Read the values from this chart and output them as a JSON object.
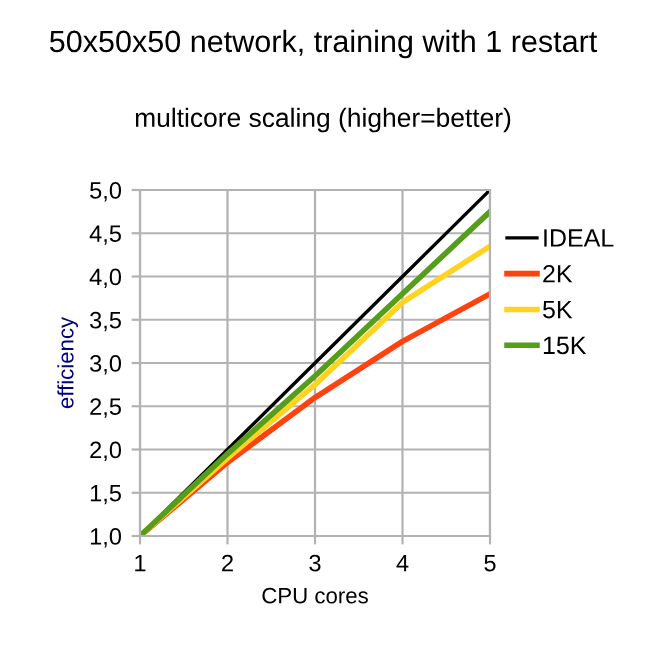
{
  "chart_data": {
    "type": "line",
    "title": "50x50x50 network, training with 1 restart",
    "subtitle": "multicore scaling (higher=better)",
    "xlabel": "CPU cores",
    "ylabel": "efficiency",
    "x": [
      1,
      2,
      3,
      4,
      5
    ],
    "series": [
      {
        "name": "IDEAL",
        "color": "#000000",
        "values": [
          1,
          2,
          3,
          4,
          5
        ]
      },
      {
        "name": "2K",
        "color": "#ff420e",
        "values": [
          1,
          1.85,
          2.6,
          3.25,
          3.8
        ]
      },
      {
        "name": "5K",
        "color": "#ffd320",
        "values": [
          1,
          1.9,
          2.75,
          3.7,
          4.35
        ]
      },
      {
        "name": "15K",
        "color": "#579d1c",
        "values": [
          1,
          1.95,
          2.85,
          3.8,
          4.75
        ]
      }
    ],
    "xlim": [
      1,
      5
    ],
    "xticks": [
      1,
      2,
      3,
      4,
      5
    ],
    "ylim": [
      1,
      5
    ],
    "yticks": [
      {
        "value": 1,
        "label": "1,0"
      },
      {
        "value": 1.5,
        "label": "1,5"
      },
      {
        "value": 2,
        "label": "2,0"
      },
      {
        "value": 2.5,
        "label": "2,5"
      },
      {
        "value": 3,
        "label": "3,0"
      },
      {
        "value": 3.5,
        "label": "3,5"
      },
      {
        "value": 4,
        "label": "4,0"
      },
      {
        "value": 4.5,
        "label": "4,5"
      },
      {
        "value": 5,
        "label": "5,0"
      }
    ],
    "grid": true,
    "legend": "right",
    "marker": "none",
    "line_style": "solid"
  }
}
